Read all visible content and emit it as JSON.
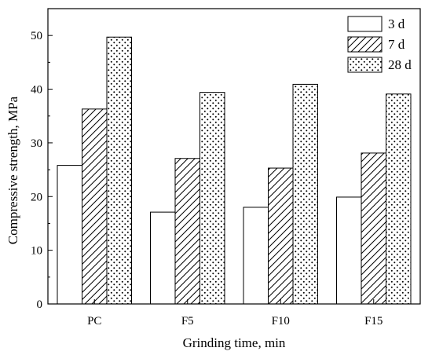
{
  "chart_data": {
    "type": "bar",
    "categories": [
      "PC",
      "F5",
      "F10",
      "F15"
    ],
    "series": [
      {
        "name": "3 d",
        "values": [
          25.8,
          17.1,
          18.0,
          19.9
        ],
        "pattern": "none"
      },
      {
        "name": "7 d",
        "values": [
          36.3,
          27.1,
          25.3,
          28.1
        ],
        "pattern": "diagonal-hatch"
      },
      {
        "name": "28 d",
        "values": [
          49.7,
          39.4,
          40.9,
          39.1
        ],
        "pattern": "dots"
      }
    ],
    "xlabel": "Grinding time, min",
    "ylabel": "Compressive strength, MPa",
    "ylim": [
      0,
      55
    ],
    "yticks": [
      0,
      10,
      20,
      30,
      40,
      50
    ],
    "legend_position": "top-right",
    "grid": false
  },
  "colors": {
    "bar_fill": "#ffffff",
    "stroke": "#000000"
  }
}
